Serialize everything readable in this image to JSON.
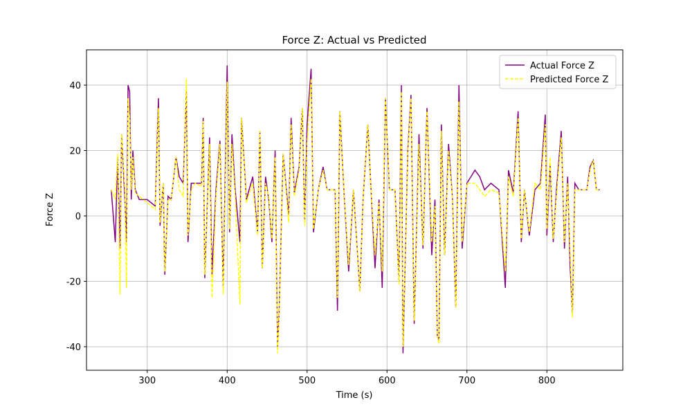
{
  "chart_data": {
    "type": "line",
    "title": "Force Z: Actual vs Predicted",
    "x_label": "Time (s)",
    "y_label": "Force Z",
    "x": [
      255,
      260,
      263,
      266,
      268,
      272,
      274,
      276,
      278,
      280,
      282,
      285,
      290,
      300,
      310,
      314,
      316,
      320,
      322,
      326,
      330,
      336,
      340,
      345,
      349,
      351,
      355,
      360,
      368,
      370,
      372,
      378,
      381,
      386,
      391,
      395,
      400,
      403,
      406,
      410,
      416,
      418,
      424,
      432,
      438,
      441,
      444,
      448,
      452,
      456,
      460,
      463,
      465,
      470,
      477,
      480,
      484,
      490,
      494,
      497,
      500,
      505,
      508,
      514,
      520,
      525,
      535,
      538,
      541,
      546,
      552,
      558,
      566,
      570,
      576,
      580,
      585,
      590,
      594,
      598,
      603,
      610,
      615,
      618,
      620,
      626,
      630,
      634,
      640,
      645,
      650,
      656,
      660,
      663,
      665,
      668,
      672,
      677,
      682,
      686,
      690,
      694,
      700,
      710,
      716,
      722,
      730,
      740,
      748,
      752,
      758,
      764,
      768,
      772,
      778,
      785,
      792,
      798,
      800,
      804,
      808,
      812,
      818,
      822,
      826,
      829,
      832,
      835,
      840,
      850,
      854,
      858,
      862,
      866
    ],
    "series": [
      {
        "name": "Actual Force Z",
        "color": "#800080",
        "dash": false,
        "values": [
          8,
          -8,
          18,
          -10,
          25,
          5,
          -8,
          40,
          38,
          5,
          20,
          8,
          5,
          5,
          3,
          36,
          -3,
          10,
          -18,
          6,
          5,
          18,
          12,
          10,
          38,
          -8,
          10,
          10,
          10,
          30,
          -19,
          24,
          -18,
          8,
          23,
          -22,
          46,
          -5,
          25,
          8,
          -8,
          30,
          5,
          12,
          -5,
          26,
          -16,
          12,
          5,
          -8,
          20,
          -40,
          -30,
          19,
          0,
          30,
          7,
          15,
          33,
          -2,
          28,
          45,
          -5,
          8,
          15,
          8,
          8,
          -29,
          32,
          8,
          -17,
          8,
          -23,
          5,
          28,
          8,
          -16,
          5,
          -22,
          36,
          8,
          8,
          -20,
          40,
          -42,
          20,
          37,
          -33,
          25,
          -10,
          33,
          -12,
          5,
          -37,
          -38,
          28,
          -12,
          22,
          5,
          -28,
          40,
          -10,
          10,
          14,
          12,
          8,
          10,
          8,
          -22,
          14,
          7,
          32,
          -8,
          8,
          -6,
          8,
          10,
          31,
          -6,
          16,
          -8,
          8,
          26,
          -10,
          12,
          -15,
          -30,
          10,
          8,
          8,
          15,
          17,
          8,
          8
        ]
      },
      {
        "name": "Predicted Force Z",
        "color": "#ffff00",
        "dash": true,
        "values": [
          8,
          5,
          19,
          -24,
          25,
          8,
          -22,
          36,
          30,
          8,
          18,
          7,
          6,
          4,
          2,
          33,
          -2,
          10,
          -17,
          5,
          5,
          18,
          8,
          6,
          42,
          -6,
          8,
          10,
          9,
          29,
          -18,
          22,
          -25,
          6,
          22,
          -24,
          41,
          -4,
          22,
          6,
          -27,
          30,
          4,
          10,
          -6,
          26,
          -16,
          10,
          6,
          -7,
          18,
          -42,
          -31,
          19,
          -2,
          28,
          6,
          14,
          33,
          -3,
          22,
          42,
          -4,
          8,
          14,
          8,
          8,
          -25,
          32,
          8,
          -15,
          8,
          -23,
          5,
          28,
          8,
          -12,
          4,
          -17,
          36,
          8,
          8,
          -21,
          38,
          -40,
          19,
          36,
          -32,
          22,
          -9,
          32,
          -8,
          3,
          -37,
          -39,
          26,
          -12,
          20,
          5,
          -28,
          35,
          -8,
          10,
          10,
          8,
          6,
          8,
          7,
          -17,
          12,
          6,
          30,
          -7,
          8,
          -5,
          10,
          8,
          28,
          -4,
          18,
          -7,
          6,
          24,
          -8,
          10,
          -10,
          -31,
          8,
          8,
          8,
          14,
          17,
          8,
          8
        ]
      }
    ],
    "xlim": [
      224,
      895
    ],
    "ylim": [
      -47.2,
      50.8
    ],
    "xticks": [
      300,
      400,
      500,
      600,
      700,
      800
    ],
    "yticks": [
      -40,
      -20,
      0,
      20,
      40
    ],
    "grid": true,
    "legend": "upper right"
  }
}
